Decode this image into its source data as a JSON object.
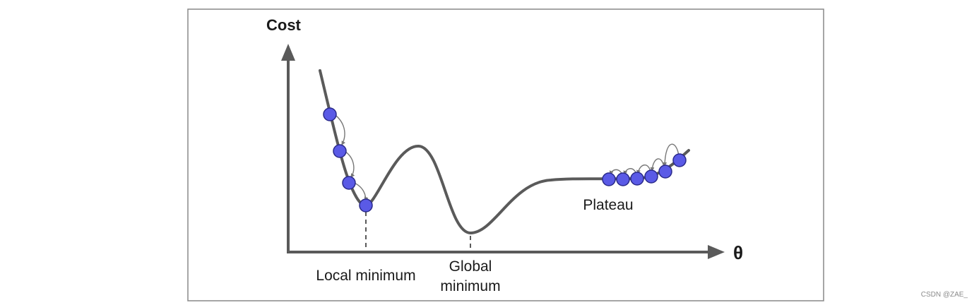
{
  "labels": {
    "y_axis": "Cost",
    "x_axis": "θ",
    "local_minimum": "Local minimum",
    "global_minimum_line1": "Global",
    "global_minimum_line2": "minimum",
    "plateau": "Plateau"
  },
  "watermark": "CSDN @ZAE_",
  "colors": {
    "frame": "#888888",
    "curve": "#5a5a5a",
    "axes": "#5a5a5a",
    "ball_fill": "#5a5ae6",
    "ball_stroke": "#2a2a8a",
    "hop_arrow": "#777777",
    "text": "#1a1a1a"
  },
  "descent_path": {
    "left_balls": 4,
    "plateau_balls": 6
  }
}
